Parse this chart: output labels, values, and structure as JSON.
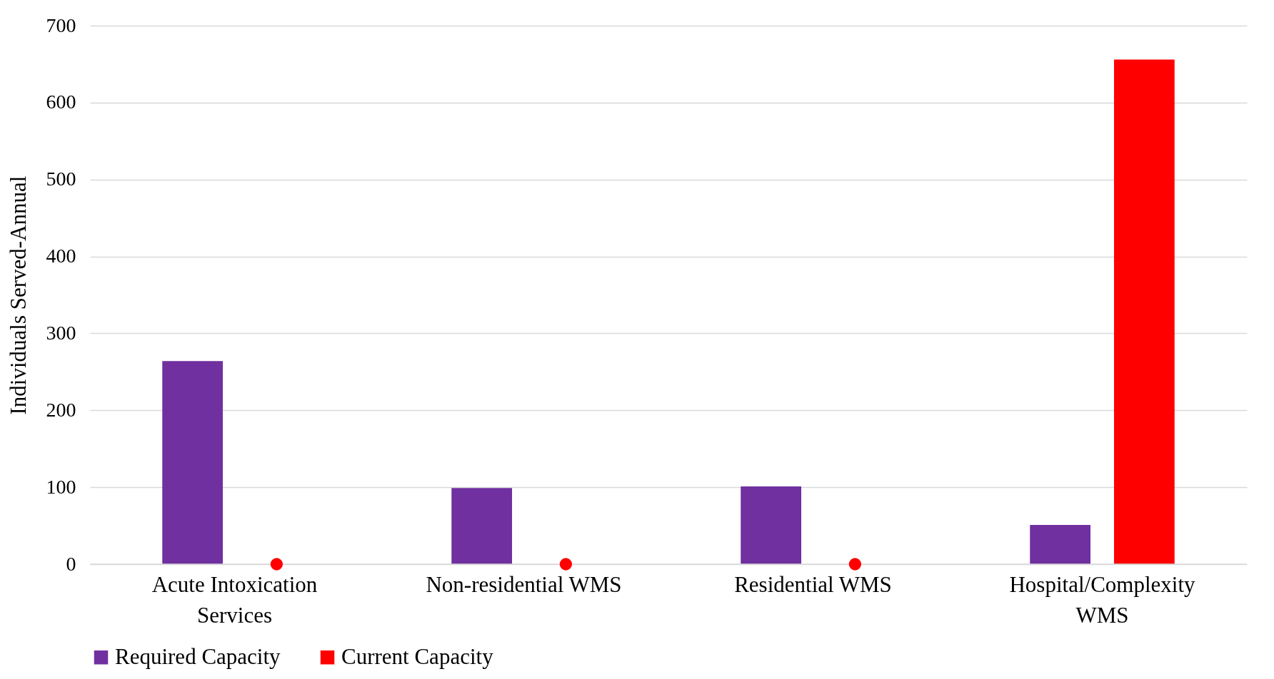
{
  "chart_data": {
    "type": "bar",
    "ylabel": "Individuals Served-Annual",
    "categories": [
      "Acute Intoxication Services",
      "Non-residential WMS",
      "Residential WMS",
      "Hospital/Complexity WMS"
    ],
    "series": [
      {
        "name": "Required Capacity",
        "color": "#7030a0",
        "values": [
          264,
          99,
          101,
          51
        ]
      },
      {
        "name": "Current Capacity",
        "color": "#ff0000",
        "values": [
          0,
          0,
          0,
          656
        ]
      },
      {
        "type": "scatter",
        "color": "#ff0000",
        "marker": "circle",
        "x": [
          "Acute Intoxication Services",
          "Non-residential WMS",
          "Residential WMS"
        ],
        "values": [
          0,
          0,
          0
        ]
      }
    ],
    "ylim": [
      0,
      700
    ],
    "yticks": [
      0,
      100,
      200,
      300,
      400,
      500,
      600,
      700
    ],
    "grid": "y",
    "legend": "bottom"
  }
}
